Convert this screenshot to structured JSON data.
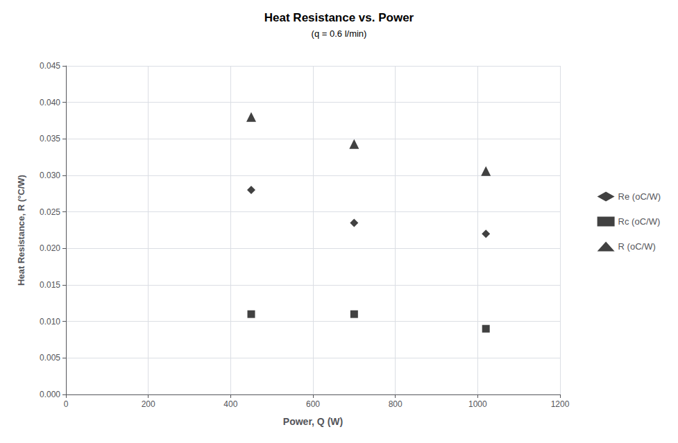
{
  "chart_data": {
    "type": "scatter",
    "title": "Heat Resistance vs. Power",
    "subtitle": "(q = 0.6 l/min)",
    "xlabel": "Power, Q (W)",
    "ylabel": "Heat Resistance, R (°C/W)",
    "xlim": [
      0,
      1200
    ],
    "ylim": [
      0.0,
      0.045
    ],
    "xticks": [
      0,
      200,
      400,
      600,
      800,
      1000,
      1200
    ],
    "yticks": [
      {
        "value": 0.0,
        "label": "0.000"
      },
      0.005,
      {
        "value": 0.01,
        "label": "0.010"
      },
      0.015,
      {
        "value": 0.02,
        "label": "0.020"
      },
      0.025,
      {
        "value": 0.03,
        "label": "0.030"
      },
      0.035,
      {
        "value": 0.04,
        "label": "0.040"
      },
      0.045
    ],
    "x": [
      450,
      700,
      1020
    ],
    "series": [
      {
        "name": "Re (oC/W)",
        "color": "#111111",
        "marker": "diamond",
        "values": [
          0.028,
          0.0235,
          0.022
        ]
      },
      {
        "name": "Rc (oC/W)",
        "color": "#111111",
        "marker": "square",
        "values": [
          0.011,
          0.011,
          0.009
        ]
      },
      {
        "name": "R (oC/W)",
        "color": "#111111",
        "marker": "triangle",
        "values": [
          0.038,
          0.0343,
          0.0306
        ]
      }
    ],
    "grid": true,
    "legend": "right"
  }
}
